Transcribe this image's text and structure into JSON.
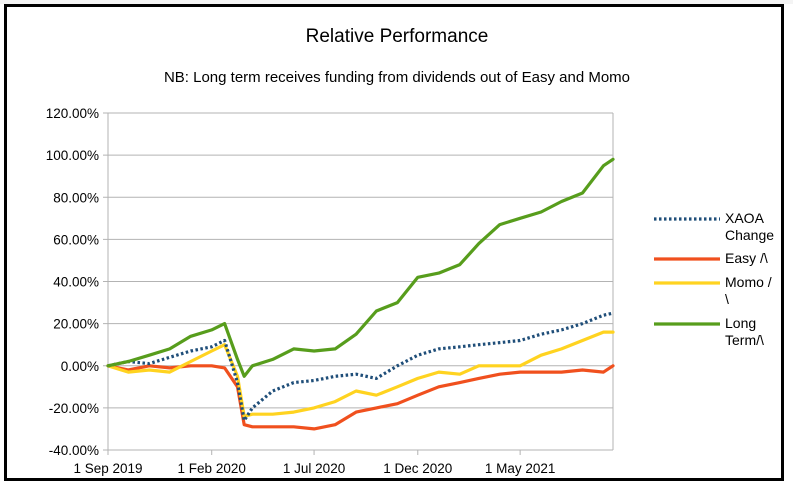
{
  "chart_data": {
    "type": "line",
    "title": "Relative Performance",
    "subtitle": "NB: Long term receives funding from dividends out of Easy and Momo",
    "xlabel": "",
    "ylabel": "",
    "x_tick_labels": [
      "1 Sep 2019",
      "1 Feb 2020",
      "1 Jul 2020",
      "1 Dec 2020",
      "1 May 2021"
    ],
    "x_tick_dates": [
      "2019-09-01",
      "2020-02-01",
      "2020-07-01",
      "2020-12-01",
      "2021-05-01"
    ],
    "x_range": [
      "2019-09-01",
      "2021-09-15"
    ],
    "y_tick_labels": [
      "120.00%",
      "100.00%",
      "80.00%",
      "60.00%",
      "40.00%",
      "20.00%",
      "0.00%",
      "-20.00%",
      "-40.00%"
    ],
    "ylim": [
      -40,
      120
    ],
    "y_unit": "%",
    "grid": "horizontal",
    "legend_position": "right",
    "x": [
      "2019-09-01",
      "2019-10-01",
      "2019-11-01",
      "2019-12-01",
      "2020-01-01",
      "2020-02-01",
      "2020-02-20",
      "2020-03-10",
      "2020-03-20",
      "2020-04-01",
      "2020-05-01",
      "2020-06-01",
      "2020-07-01",
      "2020-08-01",
      "2020-09-01",
      "2020-10-01",
      "2020-11-01",
      "2020-12-01",
      "2021-01-01",
      "2021-02-01",
      "2021-03-01",
      "2021-04-01",
      "2021-05-01",
      "2021-06-01",
      "2021-07-01",
      "2021-08-01",
      "2021-09-01",
      "2021-09-15"
    ],
    "series": [
      {
        "name": "XAOA Change",
        "color": "#1f4e79",
        "style": "dotted",
        "values": [
          0,
          2,
          1,
          4,
          7,
          9,
          12,
          -8,
          -26,
          -20,
          -12,
          -8,
          -7,
          -5,
          -4,
          -6,
          0,
          5,
          8,
          9,
          10,
          11,
          12,
          15,
          17,
          20,
          24,
          25
        ]
      },
      {
        "name": "Easy /\\",
        "color": "#f0501e",
        "style": "solid",
        "values": [
          0,
          -2,
          0,
          -1,
          0,
          0,
          -1,
          -10,
          -28,
          -29,
          -29,
          -29,
          -30,
          -28,
          -22,
          -20,
          -18,
          -14,
          -10,
          -8,
          -6,
          -4,
          -3,
          -3,
          -3,
          -2,
          -3,
          0
        ]
      },
      {
        "name": "Momo /\\",
        "color": "#ffd320",
        "style": "solid",
        "values": [
          0,
          -3,
          -2,
          -3,
          2,
          7,
          10,
          -5,
          -24,
          -23,
          -23,
          -22,
          -20,
          -17,
          -12,
          -14,
          -10,
          -6,
          -3,
          -4,
          0,
          0,
          0,
          5,
          8,
          12,
          16,
          16
        ]
      },
      {
        "name": "Long Term/\\",
        "color": "#579d1c",
        "style": "solid",
        "values": [
          0,
          2,
          5,
          8,
          14,
          17,
          20,
          3,
          -5,
          0,
          3,
          8,
          7,
          8,
          15,
          26,
          30,
          42,
          44,
          48,
          58,
          67,
          70,
          73,
          78,
          82,
          95,
          98
        ]
      }
    ],
    "legend": [
      {
        "lines": [
          "XAOA",
          "Change"
        ]
      },
      {
        "lines": [
          "Easy /\\",
          ""
        ]
      },
      {
        "lines": [
          "Momo /",
          "\\"
        ]
      },
      {
        "lines": [
          "Long",
          "Term/\\"
        ]
      }
    ]
  }
}
